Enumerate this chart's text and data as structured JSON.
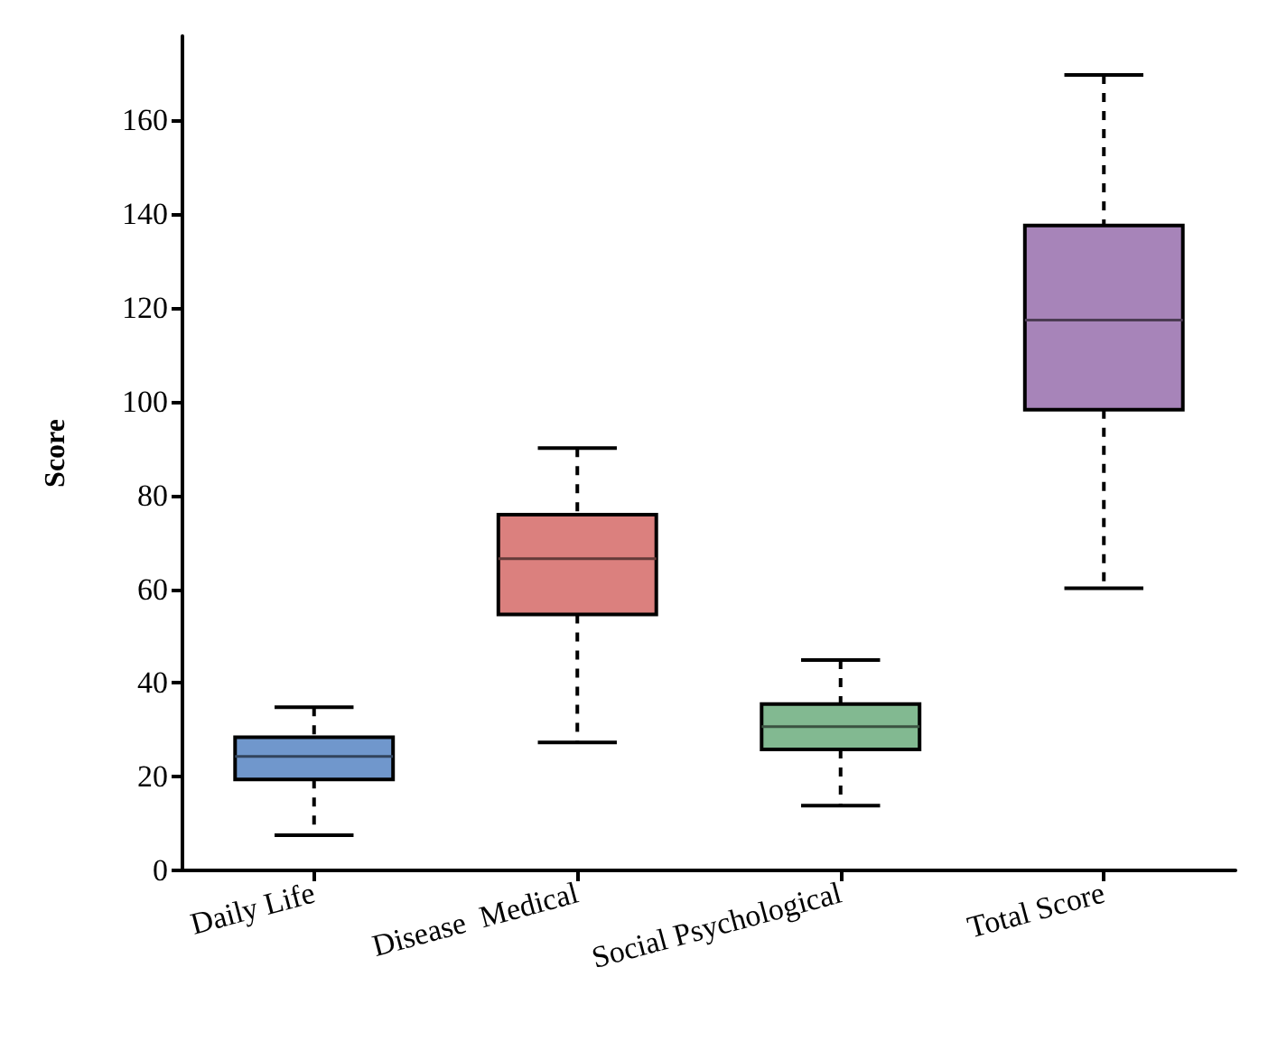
{
  "chart_data": {
    "type": "box",
    "ylabel": "Score",
    "categories": [
      "Daily Life",
      "Disease  Medical",
      "Social Psychological",
      "Total Score"
    ],
    "colors": [
      "#7097cc",
      "#db807e",
      "#82b991",
      "#a784b9"
    ],
    "boxes": [
      {
        "low": 7.5,
        "q1": 19.4,
        "median": 24.3,
        "q3": 28.4,
        "high": 34.8
      },
      {
        "low": 27.3,
        "q1": 54.6,
        "median": 66.5,
        "q3": 75.9,
        "high": 90.1
      },
      {
        "low": 13.8,
        "q1": 25.8,
        "median": 30.7,
        "q3": 35.5,
        "high": 44.9
      },
      {
        "low": 60.2,
        "q1": 98.3,
        "median": 117.4,
        "q3": 137.6,
        "high": 169.7
      }
    ],
    "ylim": [
      0,
      178
    ],
    "yticks": [
      0,
      20,
      40,
      60,
      80,
      100,
      120,
      140,
      160
    ],
    "grid": false,
    "line_style": "dashed"
  }
}
